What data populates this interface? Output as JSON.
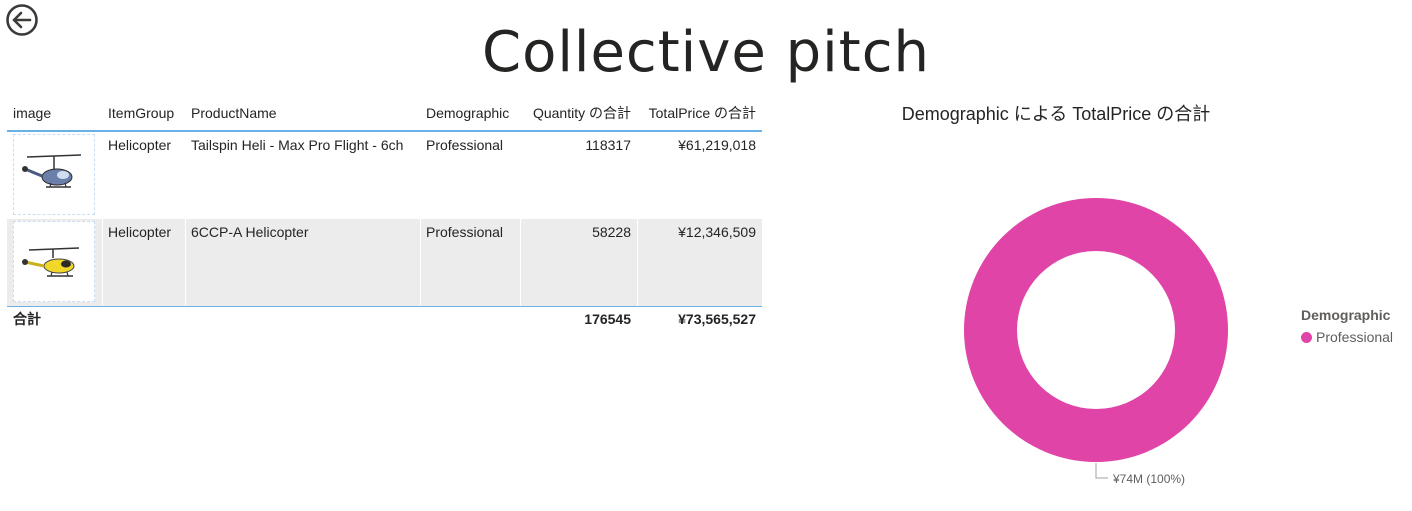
{
  "page": {
    "title": "Collective pitch"
  },
  "table": {
    "headers": [
      "image",
      "ItemGroup",
      "ProductName",
      "Demographic",
      "Quantity の合計",
      "TotalPrice の合計"
    ],
    "rows": [
      {
        "item_group": "Helicopter",
        "product_name": "Tailspin Heli - Max Pro Flight - 6ch",
        "demographic": "Professional",
        "quantity": "118317",
        "total_price": "¥61,219,018",
        "image_icon": "helicopter-blue-icon"
      },
      {
        "item_group": "Helicopter",
        "product_name": "6CCP-A Helicopter",
        "demographic": "Professional",
        "quantity": "58228",
        "total_price": "¥12,346,509",
        "image_icon": "helicopter-yellow-icon"
      }
    ],
    "footer": {
      "label": "合計",
      "quantity": "176545",
      "total_price": "¥73,565,527"
    }
  },
  "chart_data": {
    "type": "pie",
    "title": "Demographic による TotalPrice の合計",
    "categories": [
      "Professional"
    ],
    "values": [
      73565527
    ],
    "colors": [
      "#e044a7"
    ],
    "donut": true,
    "data_labels": [
      "¥74M (100%)"
    ],
    "legend": {
      "title": "Demographic",
      "placement": "right"
    }
  }
}
